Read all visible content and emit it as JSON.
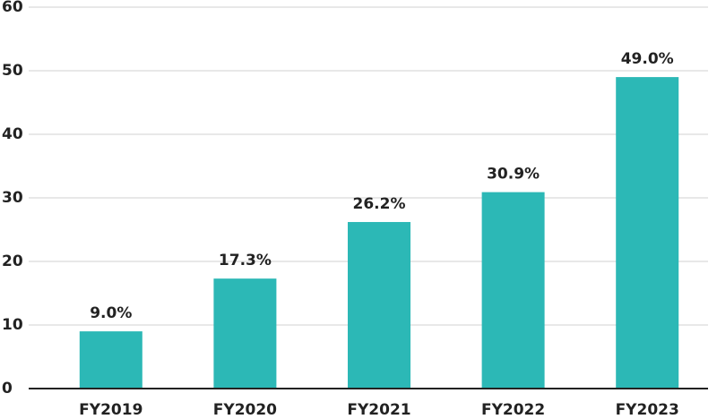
{
  "chart_data": {
    "type": "bar",
    "categories": [
      "FY2019",
      "FY2020",
      "FY2021",
      "FY2022",
      "FY2023"
    ],
    "values": [
      9.0,
      17.3,
      26.2,
      30.9,
      49.0
    ],
    "value_labels": [
      "9.0%",
      "17.3%",
      "26.2%",
      "30.9%",
      "49.0%"
    ],
    "color": "#2cb8b6",
    "ylim": [
      0,
      60
    ],
    "yticks": [
      0,
      10,
      20,
      30,
      40,
      50,
      60
    ],
    "grid": true
  }
}
